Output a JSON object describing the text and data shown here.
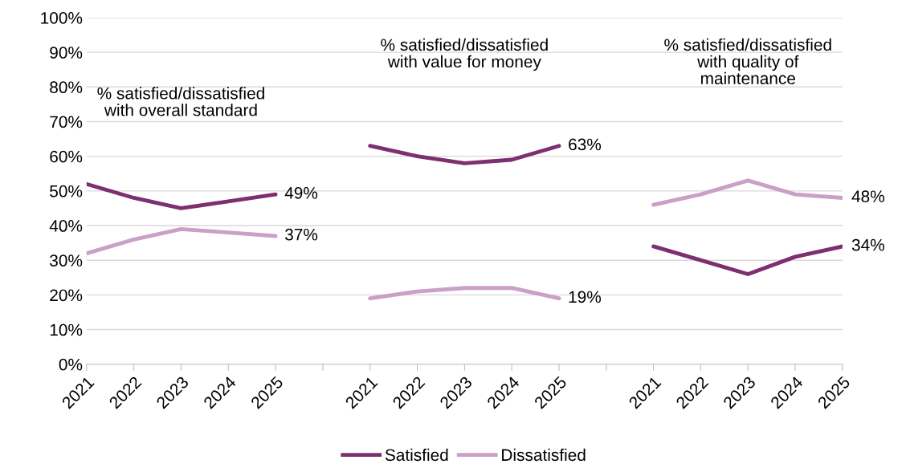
{
  "chart_data": {
    "type": "line",
    "categories": [
      "2021",
      "2022",
      "2023",
      "2024",
      "2025",
      null,
      "2021",
      "2022",
      "2023",
      "2024",
      "2025",
      null,
      "2021",
      "2022",
      "2023",
      "2024",
      "2025"
    ],
    "series": [
      {
        "name": "Satisfied",
        "color": "#7e2f70",
        "values": [
          52,
          48,
          45,
          47,
          49,
          null,
          63,
          60,
          58,
          59,
          63,
          null,
          34,
          30,
          26,
          31,
          34
        ],
        "value_labels": [
          null,
          null,
          null,
          null,
          "49%",
          null,
          null,
          null,
          null,
          null,
          "63%",
          null,
          null,
          null,
          null,
          null,
          "34%"
        ]
      },
      {
        "name": "Dissatisfied",
        "color": "#c9a0c6",
        "values": [
          32,
          36,
          39,
          38,
          37,
          null,
          19,
          21,
          22,
          22,
          19,
          null,
          46,
          49,
          53,
          49,
          48
        ],
        "value_labels": [
          null,
          null,
          null,
          null,
          "37%",
          null,
          null,
          null,
          null,
          null,
          "19%",
          null,
          null,
          null,
          null,
          null,
          "48%"
        ]
      }
    ],
    "ylim": [
      0,
      100
    ],
    "yticks": [
      {
        "value": 0,
        "label": "0%"
      },
      {
        "value": 10,
        "label": "10%"
      },
      {
        "value": 20,
        "label": "20%"
      },
      {
        "value": 30,
        "label": "30%"
      },
      {
        "value": 40,
        "label": "40%"
      },
      {
        "value": 50,
        "label": "50%"
      },
      {
        "value": 60,
        "label": "60%"
      },
      {
        "value": 70,
        "label": "70%"
      },
      {
        "value": 80,
        "label": "80%"
      },
      {
        "value": 90,
        "label": "90%"
      },
      {
        "value": 100,
        "label": "100%"
      }
    ],
    "annotations": [
      "% satisfied/dissatisfied\nwith overall standard",
      "% satisfied/dissatisfied\nwith value for money",
      "% satisfied/dissatisfied\nwith quality of\nmaintenance"
    ],
    "grid": "y",
    "legend": "bottom",
    "marker": "none",
    "line_style": "solid"
  }
}
